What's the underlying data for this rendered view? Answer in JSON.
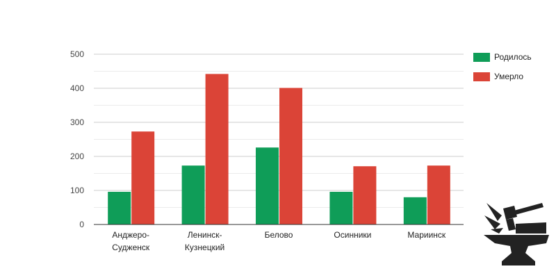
{
  "chart_data": {
    "type": "bar",
    "categories": [
      [
        "Анджеро-",
        "Судженск"
      ],
      [
        "Ленинск-",
        "Кузнецкий"
      ],
      [
        "Белово"
      ],
      [
        "Осинники"
      ],
      [
        "Мариинск"
      ]
    ],
    "series": [
      {
        "name": "Родилось",
        "color": "#0f9d58",
        "values": [
          96,
          173,
          226,
          96,
          80
        ]
      },
      {
        "name": "Умерло",
        "color": "#db4437",
        "values": [
          273,
          442,
          401,
          171,
          173
        ]
      }
    ],
    "ylim": [
      0,
      500
    ],
    "yticks": [
      0,
      100,
      200,
      300,
      400,
      500
    ],
    "grid": true,
    "legend": "right"
  }
}
